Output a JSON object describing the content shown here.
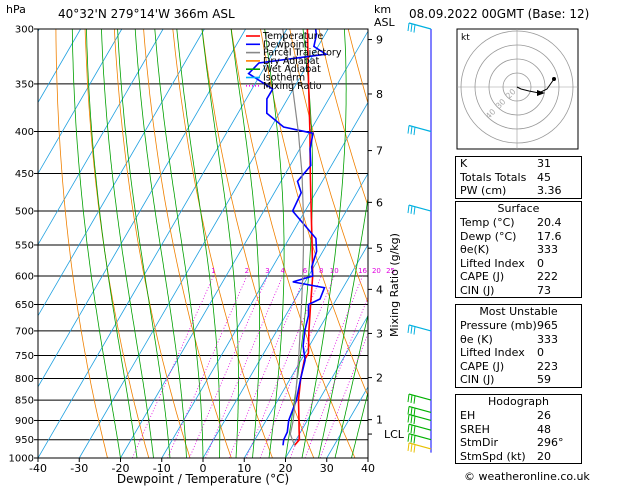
{
  "header": {
    "hpa": "hPa",
    "location": "40°32'N  279°14'W  366m  ASL",
    "km": "km",
    "asl": "ASL",
    "datetime": "08.09.2022  00GMT  (Base: 12)"
  },
  "legend": [
    {
      "label": "Temperature",
      "color": "#ff0000"
    },
    {
      "label": "Dewpoint",
      "color": "#0000ff"
    },
    {
      "label": "Parcel Trajectory",
      "color": "#888888"
    },
    {
      "label": "Dry Adiabat",
      "color": "#ff8000"
    },
    {
      "label": "Wet Adiabat",
      "color": "#00a000"
    },
    {
      "label": "Isotherm",
      "color": "#00b0ff"
    },
    {
      "label": "Mixing Ratio",
      "color": "#ff00ff"
    }
  ],
  "chart_data": {
    "type": "line",
    "title": "",
    "xlabel": "Dewpoint / Temperature (°C)",
    "ylabel": "hPa",
    "right_axis_label": "Mixing Ratio (g/kg)",
    "xlim": [
      -40,
      40
    ],
    "ylim": [
      1000,
      300
    ],
    "y_log_scale": true,
    "x_ticks": [
      "-40",
      "-30",
      "-20",
      "-10",
      "0",
      "10",
      "20",
      "30",
      "40"
    ],
    "pressure_levels": [
      "300",
      "350",
      "400",
      "450",
      "500",
      "550",
      "600",
      "650",
      "700",
      "750",
      "800",
      "850",
      "900",
      "950",
      "1000"
    ],
    "km_labels": [
      {
        "km": "9",
        "p": 309
      },
      {
        "km": "8",
        "p": 360
      },
      {
        "km": "7",
        "p": 422
      },
      {
        "km": "6",
        "p": 488
      },
      {
        "km": "5",
        "p": 555
      },
      {
        "km": "4",
        "p": 623
      },
      {
        "km": "3",
        "p": 705
      },
      {
        "km": "2",
        "p": 798
      },
      {
        "km": "1",
        "p": 898
      },
      {
        "km": "LCL",
        "p": 935
      }
    ],
    "mixing_ratio_labels": [
      {
        "label": "1",
        "g_kg": 1
      },
      {
        "label": "2",
        "g_kg": 2
      },
      {
        "label": "3",
        "g_kg": 3
      },
      {
        "label": "4",
        "g_kg": 4
      },
      {
        "label": "6",
        "g_kg": 6
      },
      {
        "label": "8",
        "g_kg": 8
      },
      {
        "label": "10",
        "g_kg": 10
      },
      {
        "label": "16",
        "g_kg": 16
      },
      {
        "label": "20",
        "g_kg": 20
      },
      {
        "label": "25",
        "g_kg": 25
      }
    ],
    "series": [
      {
        "name": "Temperature",
        "color": "#ff0000",
        "points": [
          [
            965,
            20.4
          ],
          [
            950,
            20.8
          ],
          [
            925,
            19.4
          ],
          [
            900,
            18.0
          ],
          [
            850,
            15.0
          ],
          [
            800,
            12.5
          ],
          [
            760,
            10.8
          ],
          [
            745,
            10.8
          ],
          [
            700,
            7.8
          ],
          [
            650,
            4.5
          ],
          [
            600,
            1.0
          ],
          [
            550,
            -3.5
          ],
          [
            500,
            -8.5
          ],
          [
            450,
            -14.0
          ],
          [
            400,
            -20.0
          ],
          [
            350,
            -27.0
          ],
          [
            300,
            -35.0
          ]
        ]
      },
      {
        "name": "Dewpoint",
        "color": "#0000ff",
        "points": [
          [
            965,
            17.6
          ],
          [
            950,
            17.0
          ],
          [
            930,
            16.8
          ],
          [
            900,
            15.5
          ],
          [
            850,
            14.5
          ],
          [
            800,
            12.5
          ],
          [
            760,
            11.0
          ],
          [
            730,
            8.5
          ],
          [
            700,
            6.8
          ],
          [
            670,
            5.5
          ],
          [
            650,
            4.0
          ],
          [
            640,
            6.0
          ],
          [
            620,
            5.5
          ],
          [
            610,
            -3.0
          ],
          [
            600,
            1.0
          ],
          [
            585,
            -0.5
          ],
          [
            560,
            -1.5
          ],
          [
            540,
            -3.5
          ],
          [
            500,
            -13.0
          ],
          [
            475,
            -13.5
          ],
          [
            460,
            -16.0
          ],
          [
            440,
            -15.0
          ],
          [
            420,
            -17.5
          ],
          [
            402,
            -19.0
          ],
          [
            395,
            -27.0
          ],
          [
            380,
            -33.0
          ],
          [
            365,
            -35.0
          ],
          [
            355,
            -35.0
          ],
          [
            340,
            -43.0
          ],
          [
            330,
            -42.0
          ],
          [
            322,
            -27.0
          ],
          [
            315,
            -31.0
          ],
          [
            305,
            -32.0
          ],
          [
            300,
            -33.0
          ]
        ]
      },
      {
        "name": "Parcel Trajectory",
        "color": "#888888",
        "points": [
          [
            965,
            20.4
          ],
          [
            935,
            17.8
          ],
          [
            900,
            16.6
          ],
          [
            850,
            14.2
          ],
          [
            800,
            11.6
          ],
          [
            750,
            8.8
          ],
          [
            700,
            5.7
          ],
          [
            650,
            2.3
          ],
          [
            600,
            -1.4
          ],
          [
            550,
            -5.6
          ],
          [
            500,
            -10.4
          ],
          [
            450,
            -16.0
          ],
          [
            400,
            -22.8
          ],
          [
            350,
            -31.0
          ],
          [
            300,
            -41.0
          ]
        ]
      }
    ],
    "wind_barbs_pressures": [
      300,
      400,
      500,
      700,
      850,
      880,
      900,
      925,
      950,
      975
    ]
  },
  "hodograph": {
    "unit_label": "kt",
    "ring_labels": [
      "40",
      "30",
      "20"
    ]
  },
  "indices": [
    {
      "label": "K",
      "value": "31"
    },
    {
      "label": "Totals Totals",
      "value": "45"
    },
    {
      "label": "PW (cm)",
      "value": "3.36"
    }
  ],
  "surface": {
    "title": "Surface",
    "rows": [
      {
        "label": "Temp (°C)",
        "value": "20.4"
      },
      {
        "label": "Dewp (°C)",
        "value": "17.6"
      },
      {
        "label": "θe(K)",
        "value": "333"
      },
      {
        "label": "Lifted Index",
        "value": "0"
      },
      {
        "label": "CAPE (J)",
        "value": "222"
      },
      {
        "label": "CIN (J)",
        "value": "73"
      }
    ]
  },
  "most_unstable": {
    "title": "Most Unstable",
    "rows": [
      {
        "label": "Pressure (mb)",
        "value": "965"
      },
      {
        "label": "θe (K)",
        "value": "333"
      },
      {
        "label": "Lifted Index",
        "value": "0"
      },
      {
        "label": "CAPE (J)",
        "value": "223"
      },
      {
        "label": "CIN (J)",
        "value": "59"
      }
    ]
  },
  "hodograph_table": {
    "title": "Hodograph",
    "rows": [
      {
        "label": "EH",
        "value": "26"
      },
      {
        "label": "SREH",
        "value": "48"
      },
      {
        "label": "StmDir",
        "value": "296°"
      },
      {
        "label": "StmSpd (kt)",
        "value": "20"
      }
    ]
  },
  "credit": "© weatheronline.co.uk"
}
